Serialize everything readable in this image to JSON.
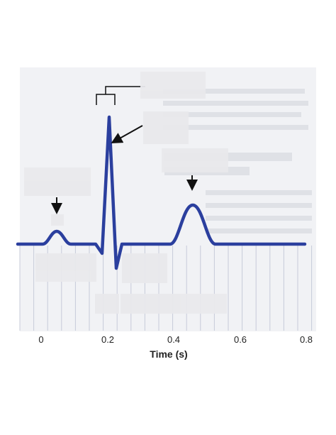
{
  "diagram": {
    "x_axis": {
      "label": "Time (s)",
      "ticks": [
        "0",
        "0.2",
        "0.4",
        "0.6",
        "0.8"
      ]
    },
    "trace_color": "#2b3f9e",
    "grid_color": "#c7cbd9",
    "background_text_color": "#d6d8de",
    "blank_label_boxes": 9,
    "arrows": 4
  }
}
